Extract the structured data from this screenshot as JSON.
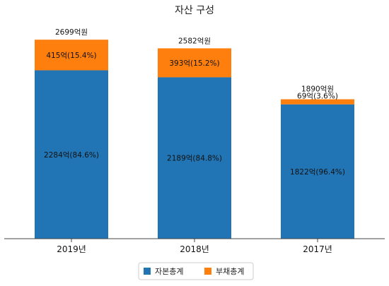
{
  "chart_data": {
    "type": "bar",
    "stacked": true,
    "title": "자산 구성",
    "categories": [
      "2019년",
      "2018년",
      "2017년"
    ],
    "series": [
      {
        "name": "자본총계",
        "color": "#2175b4",
        "values": [
          2284,
          2189,
          1822
        ],
        "labels": [
          "2284억(84.6%)",
          "2189억(84.8%)",
          "1822억(96.4%)"
        ]
      },
      {
        "name": "부채총계",
        "color": "#ff7f0e",
        "values": [
          415,
          393,
          69
        ],
        "labels": [
          "415억(15.4%)",
          "393억(15.2%)",
          "69억(3.6%)"
        ]
      }
    ],
    "totals": [
      2699,
      2582,
      1890
    ],
    "total_labels": [
      "2699억원",
      "2582억원",
      "1890억원"
    ],
    "ylim": [
      0,
      2950
    ],
    "grid": false,
    "legend_position": "bottom-center"
  }
}
